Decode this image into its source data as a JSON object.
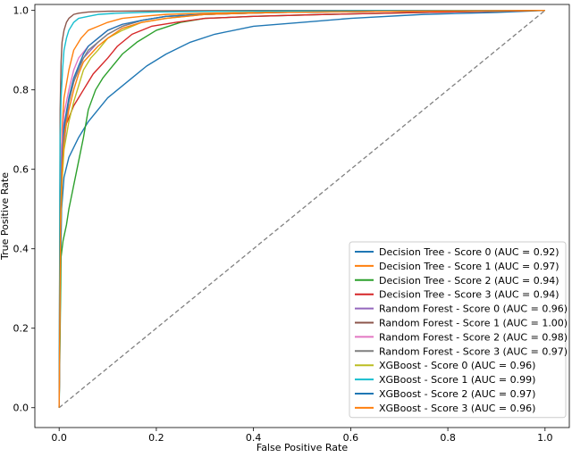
{
  "chart_data": {
    "type": "line",
    "title": "",
    "xlabel": "False Positive Rate",
    "ylabel": "True Positive Rate",
    "xlim": [
      -0.05,
      1.05
    ],
    "ylim": [
      -0.05,
      1.0
    ],
    "xticks": [
      "0.0",
      "0.2",
      "0.4",
      "0.6",
      "0.8",
      "1.0"
    ],
    "yticks": [
      "0.0",
      "0.2",
      "0.4",
      "0.6",
      "0.8",
      "1.0"
    ],
    "grid": false,
    "legend_position": "lower-right",
    "diagonal": {
      "x": [
        0,
        1
      ],
      "y": [
        0,
        1
      ],
      "color": "#808080",
      "style": "dashed"
    },
    "series": [
      {
        "name": "Decision Tree - Score 0 (AUC = 0.92)",
        "color": "#1f77b4",
        "x": [
          0,
          0.003,
          0.005,
          0.01,
          0.02,
          0.04,
          0.06,
          0.08,
          0.1,
          0.12,
          0.15,
          0.18,
          0.22,
          0.27,
          0.32,
          0.4,
          0.5,
          0.6,
          0.75,
          0.9,
          1.0
        ],
        "y": [
          0,
          0.35,
          0.5,
          0.58,
          0.63,
          0.68,
          0.72,
          0.75,
          0.78,
          0.8,
          0.83,
          0.86,
          0.89,
          0.92,
          0.94,
          0.96,
          0.97,
          0.98,
          0.99,
          0.995,
          1.0
        ]
      },
      {
        "name": "Decision Tree - Score 1 (AUC = 0.97)",
        "color": "#ff7f0e",
        "x": [
          0,
          0.003,
          0.006,
          0.01,
          0.02,
          0.03,
          0.045,
          0.06,
          0.08,
          0.1,
          0.13,
          0.17,
          0.22,
          0.3,
          0.45,
          0.7,
          1.0
        ],
        "y": [
          0,
          0.55,
          0.7,
          0.78,
          0.85,
          0.9,
          0.93,
          0.95,
          0.96,
          0.97,
          0.98,
          0.985,
          0.99,
          0.993,
          0.996,
          0.998,
          1.0
        ]
      },
      {
        "name": "Decision Tree - Score 2 (AUC = 0.94)",
        "color": "#2ca02c",
        "x": [
          0,
          0.004,
          0.008,
          0.015,
          0.02,
          0.03,
          0.04,
          0.05,
          0.06,
          0.075,
          0.09,
          0.11,
          0.13,
          0.16,
          0.2,
          0.25,
          0.3,
          0.4,
          0.55,
          0.75,
          1.0
        ],
        "y": [
          0,
          0.38,
          0.42,
          0.46,
          0.5,
          0.56,
          0.62,
          0.68,
          0.75,
          0.8,
          0.83,
          0.86,
          0.89,
          0.92,
          0.95,
          0.97,
          0.98,
          0.985,
          0.99,
          0.995,
          1.0
        ]
      },
      {
        "name": "Decision Tree - Score 3 (AUC = 0.94)",
        "color": "#d62728",
        "x": [
          0,
          0.003,
          0.006,
          0.01,
          0.02,
          0.03,
          0.04,
          0.05,
          0.06,
          0.07,
          0.085,
          0.1,
          0.12,
          0.15,
          0.19,
          0.24,
          0.3,
          0.4,
          0.55,
          0.75,
          1.0
        ],
        "y": [
          0,
          0.5,
          0.62,
          0.7,
          0.73,
          0.76,
          0.78,
          0.8,
          0.82,
          0.84,
          0.86,
          0.88,
          0.91,
          0.94,
          0.96,
          0.97,
          0.98,
          0.985,
          0.99,
          0.995,
          1.0
        ]
      },
      {
        "name": "Random Forest - Score 0 (AUC = 0.96)",
        "color": "#9467bd",
        "x": [
          0,
          0.003,
          0.006,
          0.01,
          0.015,
          0.02,
          0.03,
          0.04,
          0.05,
          0.065,
          0.08,
          0.1,
          0.13,
          0.17,
          0.22,
          0.3,
          0.45,
          0.7,
          1.0
        ],
        "y": [
          0,
          0.45,
          0.58,
          0.66,
          0.72,
          0.77,
          0.82,
          0.86,
          0.88,
          0.9,
          0.92,
          0.94,
          0.96,
          0.975,
          0.985,
          0.99,
          0.995,
          0.998,
          1.0
        ]
      },
      {
        "name": "Random Forest - Score 1 (AUC = 1.00)",
        "color": "#8c564b",
        "x": [
          0,
          0.002,
          0.004,
          0.006,
          0.01,
          0.015,
          0.02,
          0.03,
          0.04,
          0.06,
          0.1,
          0.2,
          0.4,
          0.7,
          1.0
        ],
        "y": [
          0,
          0.75,
          0.87,
          0.92,
          0.95,
          0.97,
          0.98,
          0.99,
          0.993,
          0.996,
          0.998,
          0.999,
          1.0,
          1.0,
          1.0
        ]
      },
      {
        "name": "Random Forest - Score 2 (AUC = 0.98)",
        "color": "#e377c2",
        "x": [
          0,
          0.003,
          0.005,
          0.01,
          0.02,
          0.03,
          0.04,
          0.06,
          0.08,
          0.1,
          0.13,
          0.17,
          0.22,
          0.3,
          0.45,
          0.7,
          1.0
        ],
        "y": [
          0,
          0.55,
          0.66,
          0.74,
          0.8,
          0.85,
          0.88,
          0.91,
          0.93,
          0.95,
          0.965,
          0.975,
          0.985,
          0.99,
          0.995,
          0.998,
          1.0
        ]
      },
      {
        "name": "Random Forest - Score 3 (AUC = 0.97)",
        "color": "#7f7f7f",
        "x": [
          0,
          0.003,
          0.006,
          0.01,
          0.02,
          0.03,
          0.04,
          0.05,
          0.06,
          0.08,
          0.1,
          0.13,
          0.17,
          0.22,
          0.3,
          0.45,
          0.7,
          1.0
        ],
        "y": [
          0,
          0.5,
          0.62,
          0.7,
          0.77,
          0.82,
          0.85,
          0.88,
          0.9,
          0.92,
          0.94,
          0.96,
          0.975,
          0.985,
          0.99,
          0.995,
          0.998,
          1.0
        ]
      },
      {
        "name": "XGBoost - Score 0 (AUC = 0.96)",
        "color": "#bcbd22",
        "x": [
          0,
          0.003,
          0.006,
          0.01,
          0.02,
          0.03,
          0.04,
          0.05,
          0.065,
          0.08,
          0.1,
          0.13,
          0.17,
          0.22,
          0.3,
          0.45,
          0.7,
          1.0
        ],
        "y": [
          0,
          0.45,
          0.57,
          0.65,
          0.72,
          0.77,
          0.81,
          0.85,
          0.88,
          0.9,
          0.93,
          0.95,
          0.97,
          0.98,
          0.99,
          0.995,
          0.998,
          1.0
        ]
      },
      {
        "name": "XGBoost - Score 1 (AUC = 0.99)",
        "color": "#17becf",
        "x": [
          0,
          0.002,
          0.004,
          0.007,
          0.01,
          0.015,
          0.02,
          0.03,
          0.04,
          0.06,
          0.08,
          0.12,
          0.2,
          0.35,
          0.6,
          1.0
        ],
        "y": [
          0,
          0.68,
          0.78,
          0.85,
          0.9,
          0.93,
          0.95,
          0.97,
          0.98,
          0.985,
          0.99,
          0.993,
          0.996,
          0.998,
          0.999,
          1.0
        ]
      },
      {
        "name": "XGBoost - Score 2 (AUC = 0.97)",
        "color": "#1f77b4",
        "x": [
          0,
          0.003,
          0.006,
          0.01,
          0.02,
          0.03,
          0.04,
          0.05,
          0.06,
          0.08,
          0.1,
          0.13,
          0.17,
          0.22,
          0.3,
          0.45,
          0.7,
          1.0
        ],
        "y": [
          0,
          0.5,
          0.63,
          0.71,
          0.78,
          0.83,
          0.86,
          0.89,
          0.91,
          0.93,
          0.95,
          0.965,
          0.975,
          0.985,
          0.99,
          0.995,
          0.998,
          1.0
        ]
      },
      {
        "name": "XGBoost - Score 3 (AUC = 0.96)",
        "color": "#ff7f0e",
        "x": [
          0,
          0.003,
          0.006,
          0.01,
          0.02,
          0.03,
          0.04,
          0.05,
          0.065,
          0.08,
          0.1,
          0.13,
          0.17,
          0.22,
          0.3,
          0.45,
          0.7,
          1.0
        ],
        "y": [
          0,
          0.48,
          0.6,
          0.68,
          0.75,
          0.8,
          0.84,
          0.87,
          0.89,
          0.91,
          0.93,
          0.955,
          0.97,
          0.98,
          0.99,
          0.995,
          0.998,
          1.0
        ]
      }
    ]
  }
}
